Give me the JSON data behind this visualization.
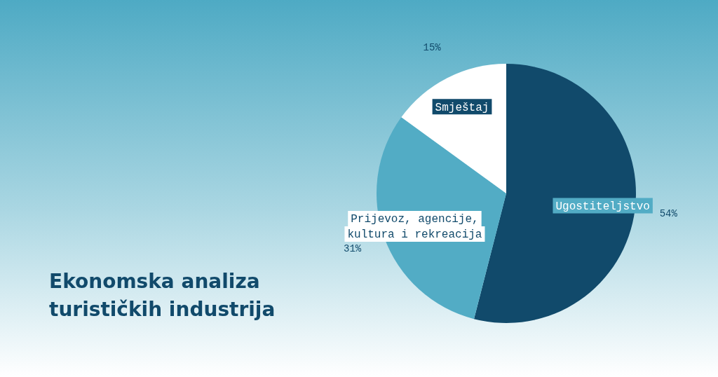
{
  "chart_data": {
    "type": "pie",
    "title": "Ekonomska analiza turističkih industrija",
    "categories": [
      "Ugostiteljstvo",
      "Prijevoz, agencije, kultura i rekreacija",
      "Smještaj"
    ],
    "values": [
      54,
      31,
      15
    ],
    "colors": [
      "#114a6b",
      "#52acc5",
      "#ffffff"
    ],
    "value_labels": [
      "54%",
      "31%",
      "15%"
    ],
    "legend": false
  }
}
